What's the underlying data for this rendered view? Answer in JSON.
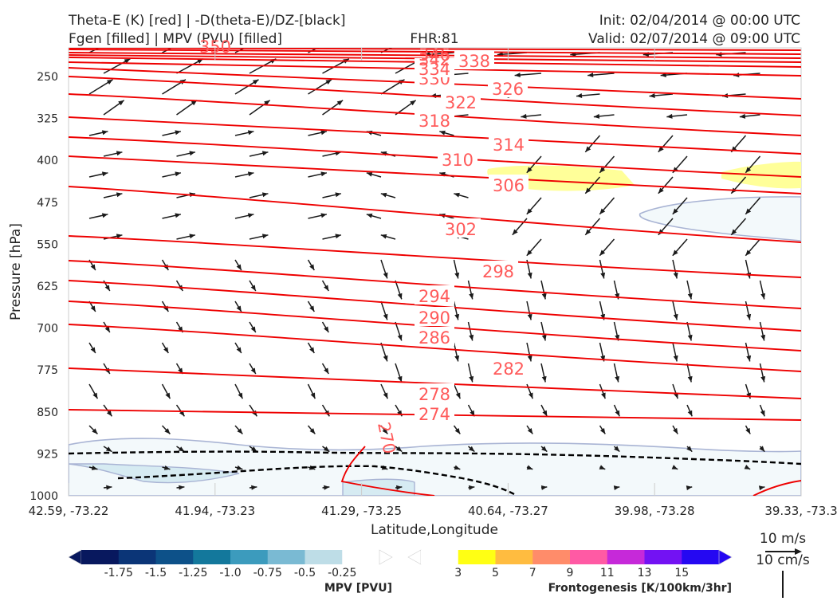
{
  "header": {
    "title_line1": "Theta-E (K) [red] | -D(theta-E)/DZ-[black]",
    "title_line2": "Fgen [filled] | MPV (PVU) [filled]",
    "fhr": "FHR:81",
    "init": "Init: 02/04/2014 @ 00:00 UTC",
    "valid": "Valid: 02/07/2014 @ 09:00 UTC"
  },
  "chart_data": {
    "type": "cross-section",
    "xlabel": "Latitude,Longitude",
    "ylabel": "Pressure [hPa]",
    "ylim": [
      1000,
      190
    ],
    "y_scale": "pressure",
    "x_ticks": [
      "42.59, -73.22",
      "41.94, -73.23",
      "41.29, -73.25",
      "40.64, -73.27",
      "39.98, -73.28",
      "39.33, -73.3"
    ],
    "y_ticks": [
      250,
      325,
      400,
      475,
      550,
      625,
      700,
      775,
      850,
      925,
      1000
    ],
    "theta_e_color": "#ee0000",
    "theta_e_label_color": "#ff5a5a",
    "theta_e_contours": [
      {
        "label": "270",
        "level": 270
      },
      {
        "label": "274",
        "level": 274
      },
      {
        "label": "278",
        "level": 278
      },
      {
        "label": "282",
        "level": 282
      },
      {
        "label": "286",
        "level": 286
      },
      {
        "label": "290",
        "level": 290
      },
      {
        "label": "294",
        "level": 294
      },
      {
        "label": "298",
        "level": 298
      },
      {
        "label": "302",
        "level": 302
      },
      {
        "label": "306",
        "level": 306
      },
      {
        "label": "310",
        "level": 310
      },
      {
        "label": "314",
        "level": 314
      },
      {
        "label": "318",
        "level": 318
      },
      {
        "label": "322",
        "level": 322
      },
      {
        "label": "326",
        "level": 326
      },
      {
        "label": "330",
        "level": 330
      },
      {
        "label": "334",
        "level": 334
      },
      {
        "label": "338",
        "level": 338
      },
      {
        "label": "342",
        "level": 342
      },
      {
        "label": "346",
        "level": 346
      },
      {
        "label": "350",
        "level": 350
      }
    ],
    "stability_contour_color": "#000000",
    "fgen_fill_color": "#ffff99",
    "mpv_fill_colors": [
      "#f3f9fb",
      "#d6ebf2"
    ],
    "vector_color": "#1a1a1a"
  },
  "colorbars": {
    "mpv": {
      "label": "MPV [PVU]",
      "ticks": [
        "-1.75",
        "-1.5",
        "-1.25",
        "-1.0",
        "-0.75",
        "-0.5",
        "-0.25"
      ],
      "colors": [
        "#08185e",
        "#0b3577",
        "#0d5189",
        "#13789c",
        "#3c9bbd",
        "#7abad3",
        "#bedde7",
        "#ffffff"
      ]
    },
    "fgen": {
      "label": "Frontogenesis [K/100km/3hr]",
      "ticks": [
        "3",
        "5",
        "7",
        "9",
        "11",
        "13",
        "15"
      ],
      "colors": [
        "#ffffff",
        "#ffff14",
        "#ffbc40",
        "#ff8c6a",
        "#ff5aa4",
        "#c629d9",
        "#7312f3",
        "#2508f2"
      ]
    }
  },
  "reference_vectors": {
    "horizontal": "10 m/s",
    "vertical": "10 cm/s"
  }
}
